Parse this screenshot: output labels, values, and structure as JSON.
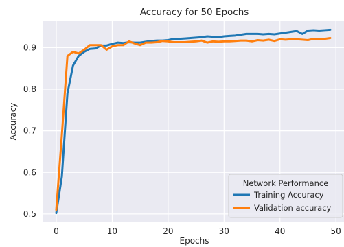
{
  "chart_data": {
    "type": "line",
    "title": "Accuracy for 50 Epochs",
    "xlabel": "Epochs",
    "ylabel": "Accuracy",
    "xlim": [
      -2.45,
      51.45
    ],
    "ylim": [
      0.48,
      0.965
    ],
    "x_ticks": [
      0,
      10,
      20,
      30,
      40,
      50
    ],
    "y_ticks": [
      0.5,
      0.6,
      0.7,
      0.8,
      0.9
    ],
    "grid": true,
    "legend_title": "Network Performance",
    "legend_position": "lower-right",
    "x": [
      0,
      1,
      2,
      3,
      4,
      5,
      6,
      7,
      8,
      9,
      10,
      11,
      12,
      13,
      14,
      15,
      16,
      17,
      18,
      19,
      20,
      21,
      22,
      23,
      24,
      25,
      26,
      27,
      28,
      29,
      30,
      31,
      32,
      33,
      34,
      35,
      36,
      37,
      38,
      39,
      40,
      41,
      42,
      43,
      44,
      45,
      46,
      47,
      48,
      49
    ],
    "series": [
      {
        "name": "Training Accuracy",
        "color": "#1f77b4",
        "values": [
          0.502,
          0.59,
          0.79,
          0.857,
          0.88,
          0.89,
          0.897,
          0.898,
          0.905,
          0.905,
          0.909,
          0.912,
          0.911,
          0.913,
          0.912,
          0.912,
          0.914,
          0.916,
          0.917,
          0.917,
          0.918,
          0.921,
          0.921,
          0.922,
          0.923,
          0.924,
          0.925,
          0.927,
          0.926,
          0.925,
          0.927,
          0.928,
          0.929,
          0.931,
          0.933,
          0.933,
          0.933,
          0.932,
          0.933,
          0.932,
          0.934,
          0.936,
          0.938,
          0.94,
          0.933,
          0.941,
          0.942,
          0.941,
          0.942,
          0.943
        ]
      },
      {
        "name": "Validation accuracy",
        "color": "#ff7f0e",
        "values": [
          0.51,
          0.69,
          0.88,
          0.89,
          0.886,
          0.895,
          0.906,
          0.906,
          0.906,
          0.895,
          0.903,
          0.906,
          0.906,
          0.915,
          0.91,
          0.906,
          0.912,
          0.912,
          0.913,
          0.916,
          0.915,
          0.913,
          0.913,
          0.913,
          0.914,
          0.915,
          0.917,
          0.912,
          0.915,
          0.914,
          0.915,
          0.915,
          0.916,
          0.917,
          0.917,
          0.915,
          0.918,
          0.917,
          0.919,
          0.916,
          0.92,
          0.919,
          0.92,
          0.92,
          0.919,
          0.918,
          0.921,
          0.921,
          0.921,
          0.923
        ]
      }
    ]
  }
}
